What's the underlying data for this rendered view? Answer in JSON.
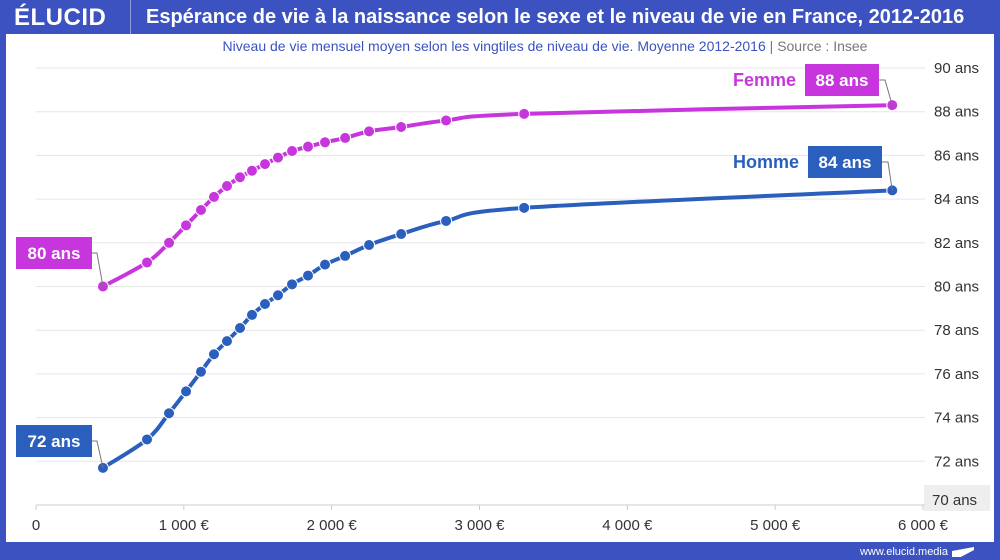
{
  "header": {
    "logo": "ÉLUCID",
    "title": "Espérance de vie à la naissance selon le sexe et le niveau de vie en France, 2012-2016"
  },
  "subtitle": {
    "text": "Niveau de vie mensuel moyen selon les vingtiles de niveau de vie. Moyenne 2012-2016",
    "separator": "|",
    "source": "Source : Insee"
  },
  "footer": {
    "url": "www.elucid.media"
  },
  "chart_data": {
    "type": "line",
    "title": "Espérance de vie à la naissance selon le sexe et le niveau de vie en France, 2012-2016",
    "xlabel": "",
    "ylabel": "",
    "xlim": [
      0,
      6000
    ],
    "ylim": [
      70,
      90
    ],
    "x_ticks": [
      "0",
      "1 000 €",
      "2 000 €",
      "3 000 €",
      "4 000 €",
      "5 000 €",
      "6 000 €"
    ],
    "y_ticks": [
      "70 ans",
      "72 ans",
      "74 ans",
      "76 ans",
      "78 ans",
      "80 ans",
      "82 ans",
      "84 ans",
      "86 ans",
      "88 ans",
      "90 ans"
    ],
    "grid": true,
    "series": [
      {
        "name": "Femme",
        "color": "#c736dd",
        "x": [
          453,
          751,
          900,
          1015,
          1116,
          1204,
          1292,
          1380,
          1461,
          1549,
          1637,
          1732,
          1840,
          1955,
          2091,
          2253,
          2470,
          2774,
          3302,
          5792
        ],
        "y": [
          80.0,
          81.1,
          82.0,
          82.8,
          83.5,
          84.1,
          84.6,
          85.0,
          85.3,
          85.6,
          85.9,
          86.2,
          86.4,
          86.6,
          86.8,
          87.1,
          87.3,
          87.6,
          87.9,
          88.3
        ],
        "label_start": "80 ans",
        "label_end": "88 ans"
      },
      {
        "name": "Homme",
        "color": "#2a5fbd",
        "x": [
          453,
          751,
          900,
          1015,
          1116,
          1204,
          1292,
          1380,
          1461,
          1549,
          1637,
          1732,
          1840,
          1955,
          2091,
          2253,
          2470,
          2774,
          3302,
          5792
        ],
        "y": [
          71.7,
          73.0,
          74.2,
          75.2,
          76.1,
          76.9,
          77.5,
          78.1,
          78.7,
          79.2,
          79.6,
          80.1,
          80.5,
          81.0,
          81.4,
          81.9,
          82.4,
          83.0,
          83.6,
          84.4
        ],
        "label_start": "72 ans",
        "label_end": "84 ans"
      }
    ]
  }
}
